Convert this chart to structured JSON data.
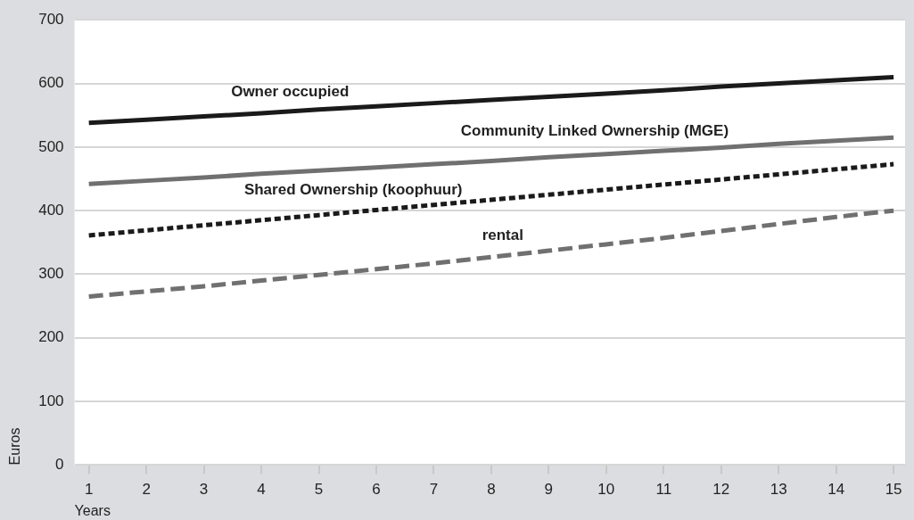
{
  "chart_data": {
    "type": "line",
    "xlabel": "Years",
    "ylabel": "Euros",
    "x": [
      1,
      2,
      3,
      4,
      5,
      6,
      7,
      8,
      9,
      10,
      11,
      12,
      13,
      14,
      15
    ],
    "xlim": [
      0.75,
      15.2
    ],
    "xticks": [
      1,
      2,
      3,
      4,
      5,
      6,
      7,
      8,
      9,
      10,
      11,
      12,
      13,
      14,
      15
    ],
    "ylim": [
      0,
      700
    ],
    "yticks": [
      0,
      100,
      200,
      300,
      400,
      500,
      600,
      700
    ],
    "grid": "y",
    "legend": false,
    "marker": "none",
    "series": [
      {
        "name": "Owner occupied",
        "color": "#1a1a1a",
        "line_style": "solid",
        "values": [
          538,
          543,
          548,
          553,
          559,
          564,
          569,
          574,
          579,
          584,
          589,
          595,
          600,
          605,
          610
        ]
      },
      {
        "name": "Community Linked Ownership (MGE)",
        "color": "#707070",
        "line_style": "solid",
        "values": [
          442,
          447,
          452,
          458,
          463,
          468,
          473,
          478,
          484,
          489,
          494,
          499,
          505,
          510,
          515
        ]
      },
      {
        "name": "Shared Ownership (koophuur)",
        "color": "#1a1a1a",
        "line_style": "dotted",
        "values": [
          361,
          369,
          377,
          385,
          393,
          401,
          409,
          417,
          425,
          433,
          441,
          449,
          457,
          465,
          473
        ]
      },
      {
        "name": "rental",
        "color": "#707070",
        "line_style": "dashed",
        "values": [
          265,
          273,
          281,
          290,
          299,
          308,
          317,
          327,
          337,
          347,
          357,
          368,
          379,
          390,
          400
        ]
      }
    ]
  }
}
